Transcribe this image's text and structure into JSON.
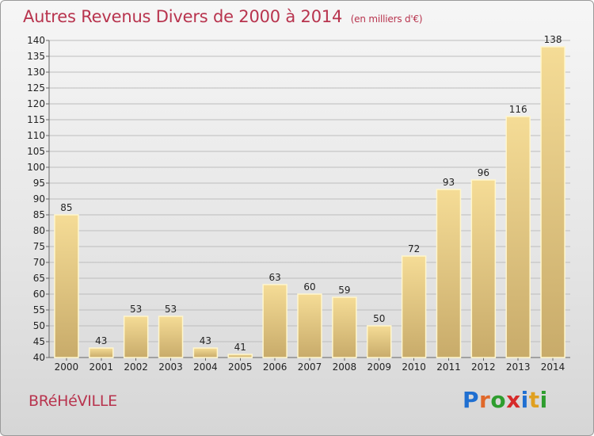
{
  "title": "Autres Revenus Divers de 2000 à 2014",
  "subtitle": "(en milliers d'€)",
  "place": "BRéHéVILLE",
  "logo": {
    "letters": [
      "P",
      "r",
      "o",
      "x",
      "i",
      "t",
      "i"
    ],
    "colors": [
      "#1f6fd1",
      "#e0682a",
      "#2e9d2e",
      "#d62a2a",
      "#1f6fd1",
      "#e0a020",
      "#2e9d2e"
    ]
  },
  "colors": {
    "bar_fill_top": "#f5dc96",
    "bar_fill_bottom": "#c8ab6a",
    "bar_border": "#fff6cc",
    "grid": "#bdbdbd",
    "title": "#b8344e"
  },
  "chart_data": {
    "type": "bar",
    "title": "Autres Revenus Divers de 2000 à 2014",
    "subtitle": "(en milliers d'€)",
    "categories": [
      "2000",
      "2001",
      "2002",
      "2003",
      "2004",
      "2005",
      "2006",
      "2007",
      "2008",
      "2009",
      "2010",
      "2011",
      "2012",
      "2013",
      "2014"
    ],
    "values": [
      85,
      43,
      53,
      53,
      43,
      41,
      63,
      60,
      59,
      50,
      72,
      93,
      96,
      116,
      138
    ],
    "ylim": [
      40,
      140
    ],
    "yticks": [
      40,
      45,
      50,
      55,
      60,
      65,
      70,
      75,
      80,
      85,
      90,
      95,
      100,
      105,
      110,
      115,
      120,
      125,
      130,
      135,
      140
    ],
    "grid": true,
    "data_labels": true
  }
}
